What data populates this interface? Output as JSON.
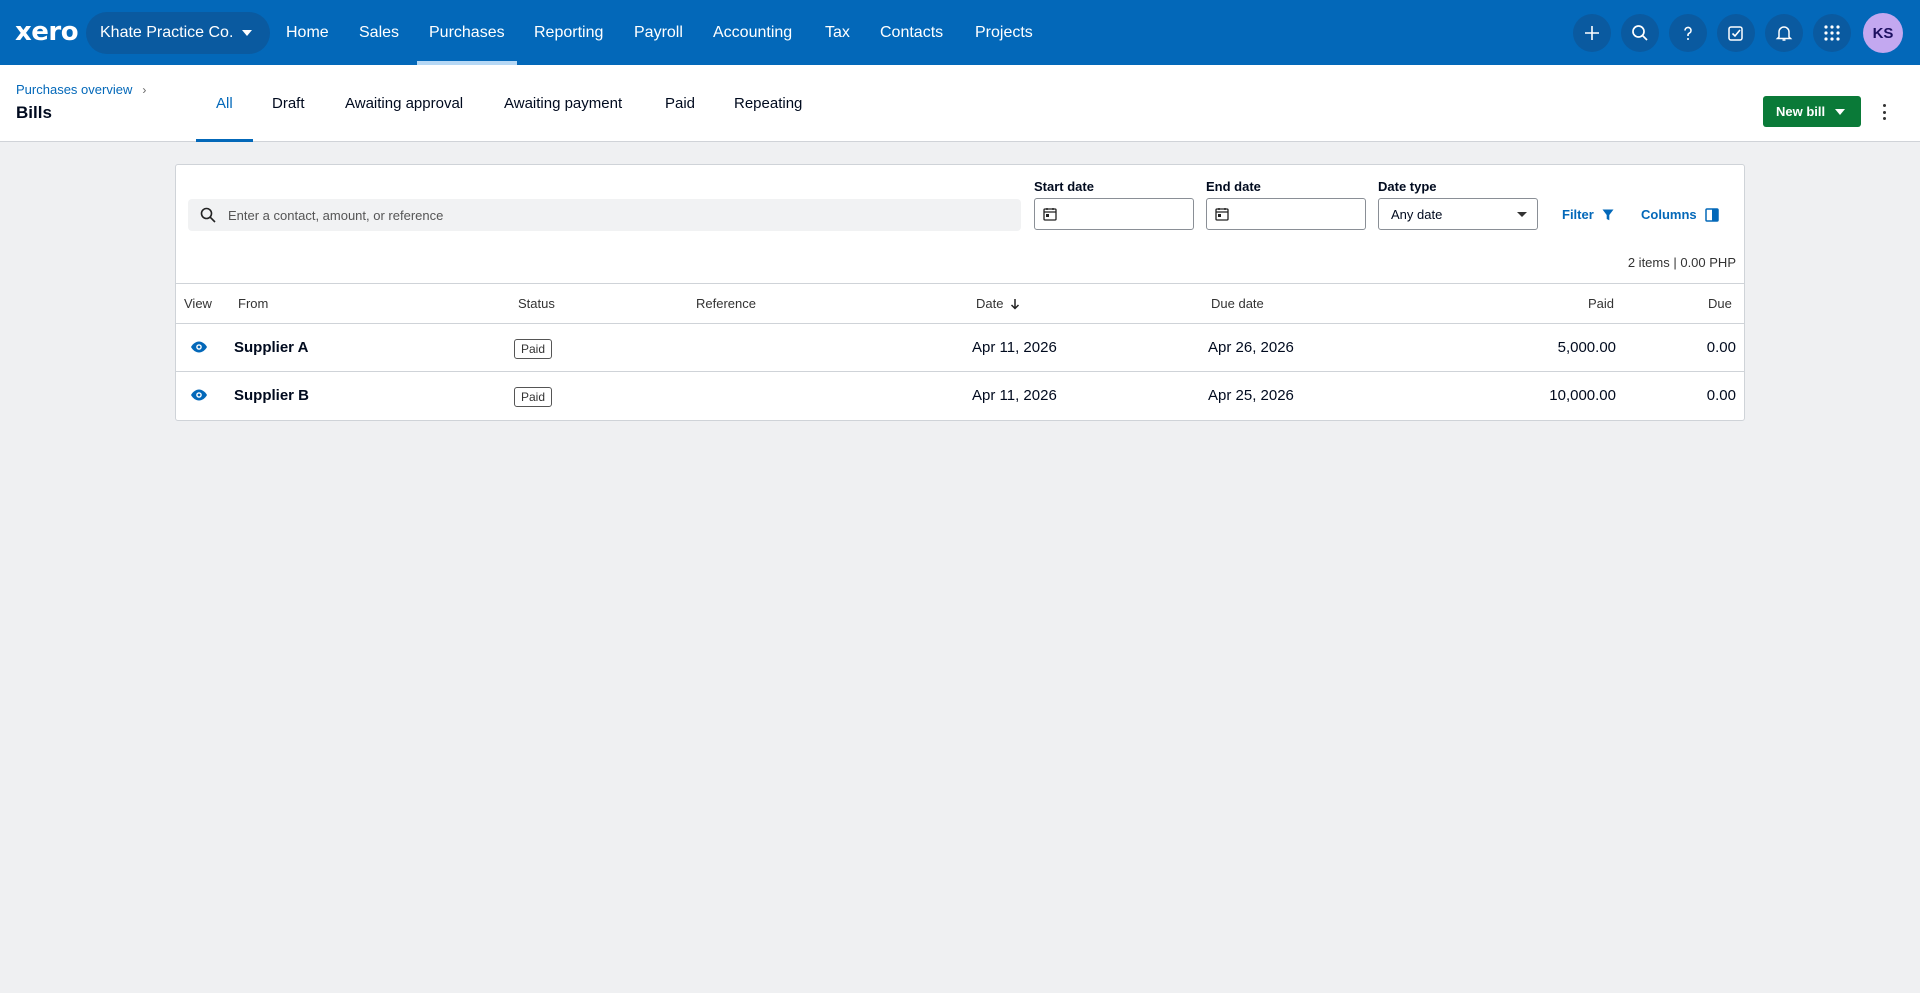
{
  "nav": {
    "logo": "xero",
    "org": "Khate Practice Co.",
    "items": [
      "Home",
      "Sales",
      "Purchases",
      "Reporting",
      "Payroll",
      "Accounting",
      "Tax",
      "Contacts",
      "Projects"
    ],
    "active": "Purchases",
    "avatar": "KS",
    "icons": [
      "plus-icon",
      "search-icon",
      "help-icon",
      "tasks-icon",
      "bell-icon",
      "apps-grid-icon"
    ]
  },
  "subheader": {
    "breadcrumb": "Purchases overview",
    "title": "Bills",
    "tabs": [
      "All",
      "Draft",
      "Awaiting approval",
      "Awaiting payment",
      "Paid",
      "Repeating"
    ],
    "active_tab": "All",
    "new_bill": "New bill"
  },
  "filters": {
    "search_placeholder": "Enter a contact, amount, or reference",
    "start_date_label": "Start date",
    "end_date_label": "End date",
    "date_type_label": "Date type",
    "date_type_value": "Any date",
    "filter_label": "Filter",
    "columns_label": "Columns",
    "summary": "2 items | 0.00 PHP"
  },
  "table": {
    "headers": {
      "view": "View",
      "from": "From",
      "status": "Status",
      "reference": "Reference",
      "date": "Date",
      "due_date": "Due date",
      "paid": "Paid",
      "due": "Due"
    },
    "rows": [
      {
        "from": "Supplier A",
        "status": "Paid",
        "reference": "",
        "date": "Apr 11, 2026",
        "due_date": "Apr 26, 2026",
        "paid": "5,000.00",
        "due": "0.00"
      },
      {
        "from": "Supplier B",
        "status": "Paid",
        "reference": "",
        "date": "Apr 11, 2026",
        "due_date": "Apr 25, 2026",
        "paid": "10,000.00",
        "due": "0.00"
      }
    ]
  },
  "colors": {
    "nav": "#0368b9",
    "primary_button": "#0a7a38",
    "avatar": "#c3a8f0"
  }
}
